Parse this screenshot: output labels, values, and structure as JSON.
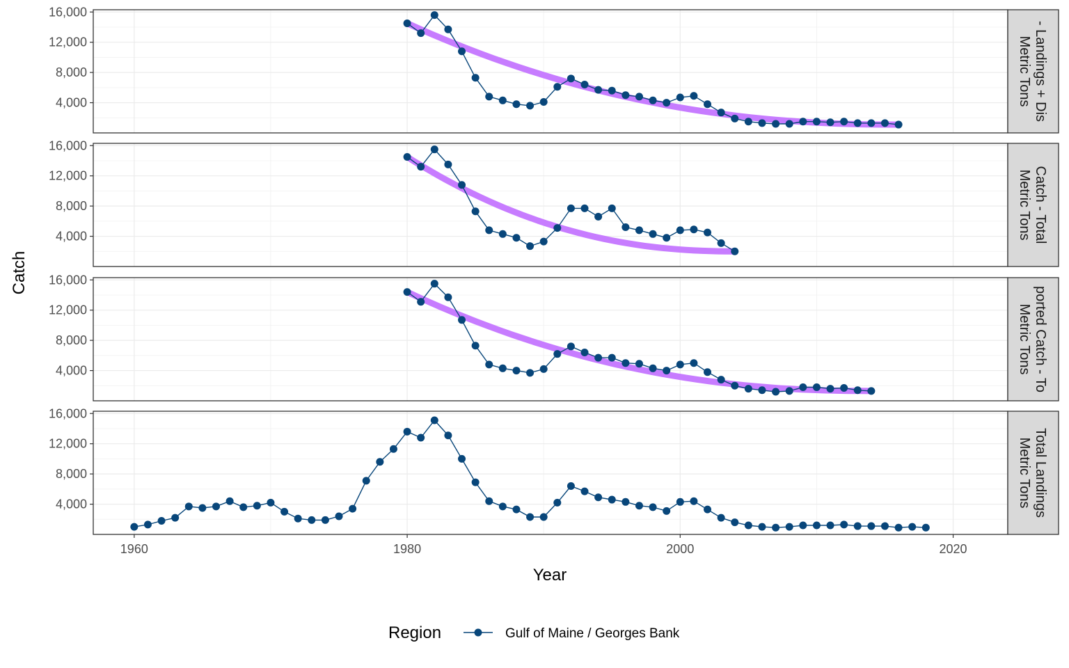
{
  "chart_data": {
    "type": "line",
    "xlabel": "Year",
    "ylabel": "Catch",
    "xlim": [
      1957,
      2024
    ],
    "ylim": [
      0,
      16300
    ],
    "x_ticks": [
      1960,
      1980,
      2000,
      2020
    ],
    "x_tick_labels": [
      "1960",
      "1980",
      "2000",
      "2020"
    ],
    "y_ticks": [
      4000,
      8000,
      12000,
      16000
    ],
    "y_tick_labels": [
      "4,000",
      "8,000",
      "12,000",
      "16,000"
    ],
    "grid": true,
    "legend": {
      "title": "Region",
      "position": "bottom",
      "entries": [
        "Gulf of Maine / Georges Bank"
      ]
    },
    "colors": {
      "series": "#08467a",
      "trend": "#c77cff",
      "trend_end": "#6a2ac2"
    },
    "panels": [
      {
        "strip_lines": [
          "- Landings + Dis",
          "Metric Tons"
        ],
        "series": [
          {
            "name": "Gulf of Maine / Georges Bank",
            "x": [
              1980,
              1981,
              1982,
              1983,
              1984,
              1985,
              1986,
              1987,
              1988,
              1989,
              1990,
              1991,
              1992,
              1993,
              1994,
              1995,
              1996,
              1997,
              1998,
              1999,
              2000,
              2001,
              2002,
              2003,
              2004,
              2005,
              2006,
              2007,
              2008,
              2009,
              2010,
              2011,
              2012,
              2013,
              2014,
              2015,
              2016
            ],
            "values": [
              14500,
              13200,
              15600,
              13700,
              10800,
              7300,
              4800,
              4300,
              3800,
              3600,
              4100,
              6100,
              7200,
              6400,
              5700,
              5600,
              5000,
              4800,
              4300,
              4000,
              4700,
              4900,
              3800,
              2700,
              1900,
              1500,
              1300,
              1200,
              1200,
              1500,
              1500,
              1400,
              1500,
              1300,
              1300,
              1300,
              1100
            ]
          }
        ],
        "trend": {
          "x": [
            1980,
            2016
          ],
          "values": [
            14500,
            1100
          ]
        }
      },
      {
        "strip_lines": [
          "Catch - Total",
          "Metric Tons"
        ],
        "series": [
          {
            "name": "Gulf of Maine / Georges Bank",
            "x": [
              1980,
              1981,
              1982,
              1983,
              1984,
              1985,
              1986,
              1987,
              1988,
              1989,
              1990,
              1991,
              1992,
              1993,
              1994,
              1995,
              1996,
              1997,
              1998,
              1999,
              2000,
              2001,
              2002,
              2003,
              2004
            ],
            "values": [
              14500,
              13200,
              15500,
              13500,
              10800,
              7300,
              4800,
              4300,
              3800,
              2700,
              3300,
              5100,
              7700,
              7700,
              6600,
              7700,
              5200,
              4800,
              4300,
              3800,
              4800,
              4900,
              4500,
              3100,
              2000
            ]
          }
        ],
        "trend": {
          "x": [
            1980,
            2004
          ],
          "values": [
            14500,
            2000
          ]
        }
      },
      {
        "strip_lines": [
          "ported Catch - To",
          "Metric Tons"
        ],
        "series": [
          {
            "name": "Gulf of Maine / Georges Bank",
            "x": [
              1980,
              1981,
              1982,
              1983,
              1984,
              1985,
              1986,
              1987,
              1988,
              1989,
              1990,
              1991,
              1992,
              1993,
              1994,
              1995,
              1996,
              1997,
              1998,
              1999,
              2000,
              2001,
              2002,
              2003,
              2004,
              2005,
              2006,
              2007,
              2008,
              2009,
              2010,
              2011,
              2012,
              2013,
              2014
            ],
            "values": [
              14400,
              13100,
              15500,
              13700,
              10700,
              7300,
              4800,
              4300,
              4000,
              3700,
              4200,
              6200,
              7200,
              6400,
              5700,
              5700,
              5000,
              4900,
              4300,
              4000,
              4800,
              5000,
              3800,
              2800,
              2000,
              1600,
              1400,
              1200,
              1300,
              1800,
              1800,
              1600,
              1700,
              1400,
              1300
            ]
          }
        ],
        "trend": {
          "x": [
            1980,
            2014
          ],
          "values": [
            14400,
            1300
          ]
        }
      },
      {
        "strip_lines": [
          "Total Landings",
          "Metric Tons"
        ],
        "series": [
          {
            "name": "Gulf of Maine / Georges Bank",
            "x": [
              1960,
              1961,
              1962,
              1963,
              1964,
              1965,
              1966,
              1967,
              1968,
              1969,
              1970,
              1971,
              1972,
              1973,
              1974,
              1975,
              1976,
              1977,
              1978,
              1979,
              1980,
              1981,
              1982,
              1983,
              1984,
              1985,
              1986,
              1987,
              1988,
              1989,
              1990,
              1991,
              1992,
              1993,
              1994,
              1995,
              1996,
              1997,
              1998,
              1999,
              2000,
              2001,
              2002,
              2003,
              2004,
              2005,
              2006,
              2007,
              2008,
              2009,
              2010,
              2011,
              2012,
              2013,
              2014,
              2015,
              2016,
              2017,
              2018
            ],
            "values": [
              1000,
              1300,
              1800,
              2200,
              3700,
              3500,
              3700,
              4400,
              3600,
              3800,
              4200,
              3000,
              2100,
              1900,
              1900,
              2400,
              3400,
              7100,
              9600,
              11300,
              13600,
              12800,
              15100,
              13100,
              10000,
              6900,
              4400,
              3700,
              3300,
              2300,
              2300,
              4200,
              6400,
              5700,
              4900,
              4600,
              4300,
              3800,
              3600,
              3100,
              4300,
              4400,
              3300,
              2200,
              1600,
              1200,
              1000,
              900,
              1000,
              1200,
              1200,
              1200,
              1300,
              1100,
              1100,
              1100,
              900,
              1000,
              900
            ]
          }
        ],
        "trend": null
      }
    ]
  }
}
